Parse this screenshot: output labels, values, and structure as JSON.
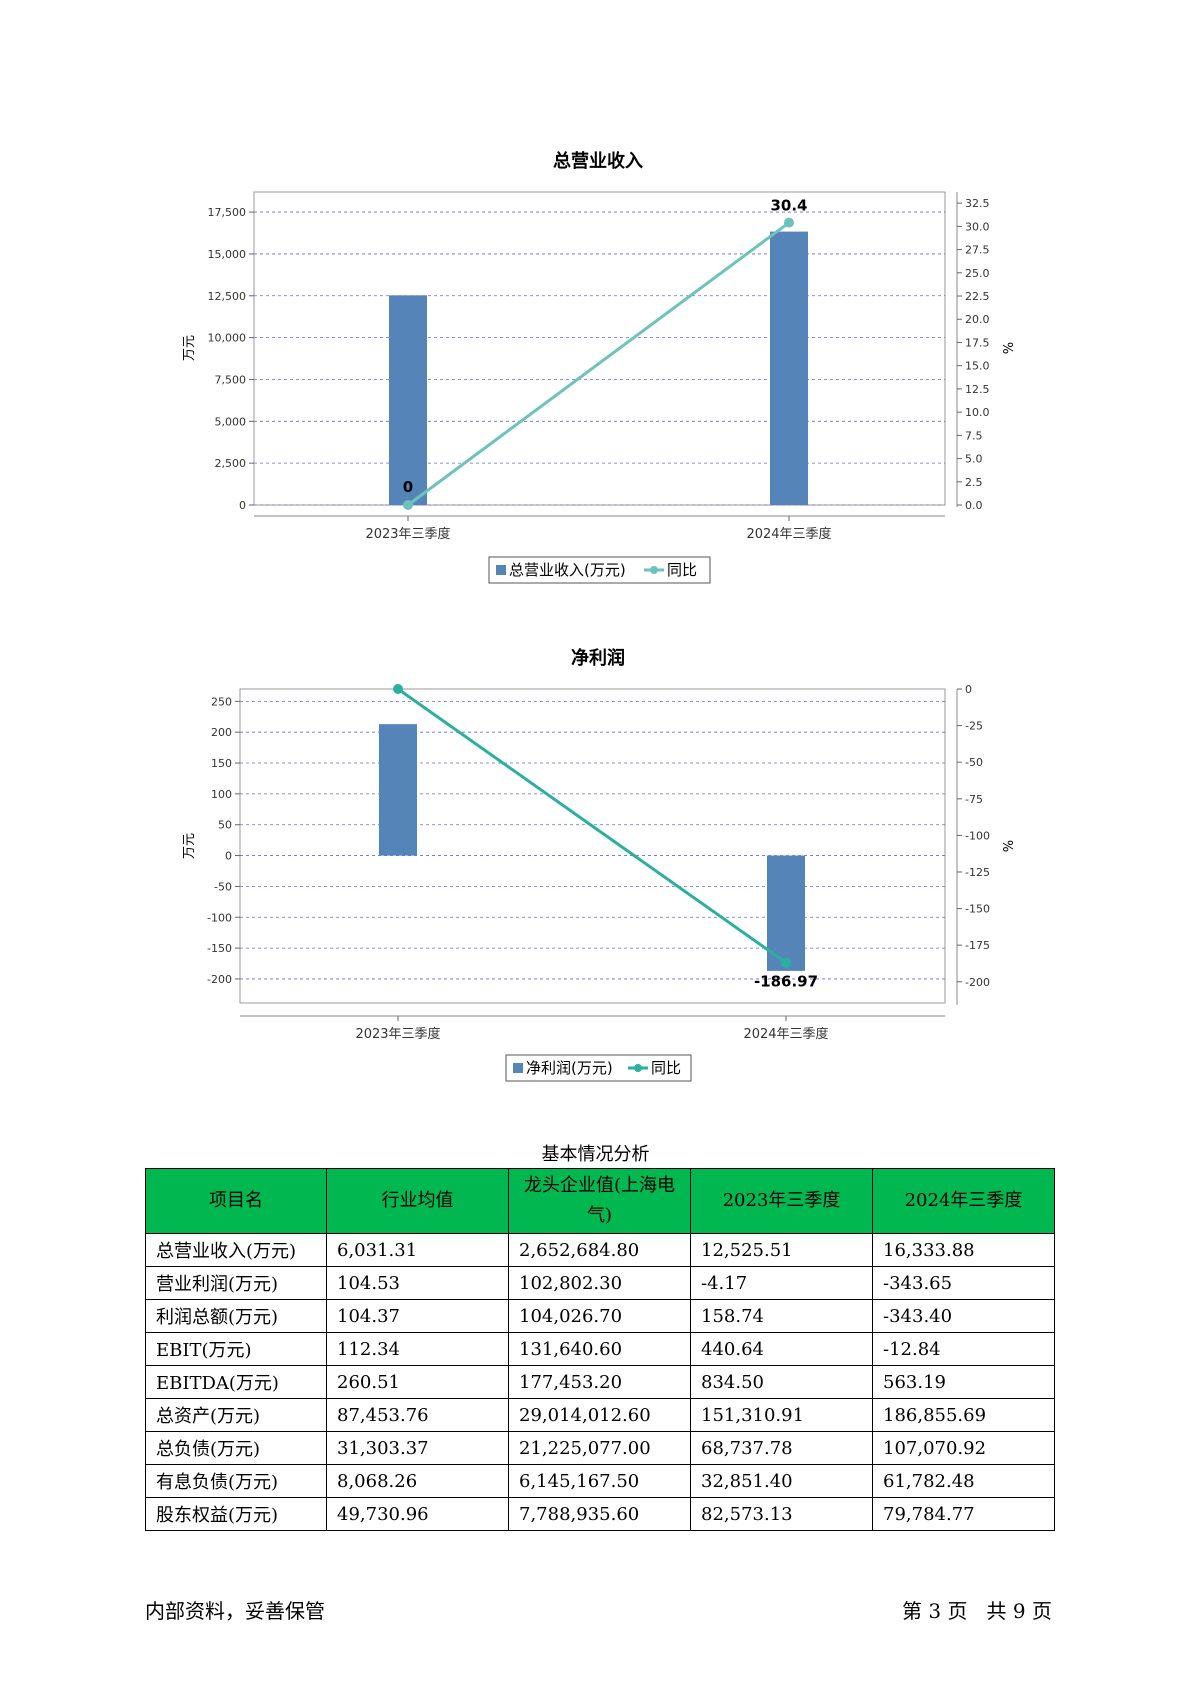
{
  "chart_data": [
    {
      "type": "bar",
      "title": "总营业收入",
      "categories": [
        "2023年三季度",
        "2024年三季度"
      ],
      "series": [
        {
          "name": "总营业收入(万元)",
          "axis": "left",
          "type": "bar",
          "values": [
            12525.51,
            16333.88
          ]
        },
        {
          "name": "同比",
          "axis": "right",
          "type": "line",
          "values": [
            0,
            30.4
          ],
          "labels": [
            "0",
            "30.4"
          ]
        }
      ],
      "ylabel": "万元",
      "ylim": [
        0,
        18700
      ],
      "yticks": [
        0,
        2500,
        5000,
        7500,
        10000,
        12500,
        15000,
        17500
      ],
      "ytick_labels": [
        "0",
        "2,500",
        "5,000",
        "7,500",
        "10,000",
        "12,500",
        "15,000",
        "17,500"
      ],
      "y2label": "%",
      "y2lim": [
        0,
        33.7
      ],
      "y2ticks": [
        0,
        2.5,
        5,
        7.5,
        10,
        12.5,
        15,
        17.5,
        20,
        22.5,
        25,
        27.5,
        30,
        32.5
      ],
      "y2tick_labels": [
        "0.0",
        "2.5",
        "5.0",
        "7.5",
        "10.0",
        "12.5",
        "15.0",
        "17.5",
        "20.0",
        "22.5",
        "25.0",
        "27.5",
        "30.0",
        "32.5"
      ],
      "legend": "bottom-center",
      "grid": true,
      "colors": {
        "bar": "#5585b8",
        "line": "#6ec2bc"
      }
    },
    {
      "type": "bar",
      "title": "净利润",
      "categories": [
        "2023年三季度",
        "2024年三季度"
      ],
      "series": [
        {
          "name": "净利润(万元)",
          "axis": "left",
          "type": "bar",
          "values": [
            213,
            -186.97
          ]
        },
        {
          "name": "同比",
          "axis": "right",
          "type": "line",
          "values": [
            0,
            -186.97
          ],
          "labels": [
            "",
            "-186.97"
          ]
        }
      ],
      "ylabel": "万元",
      "ylim": [
        -239,
        270
      ],
      "yticks": [
        -200,
        -150,
        -100,
        -50,
        0,
        50,
        100,
        150,
        200,
        250
      ],
      "ytick_labels": [
        "-200",
        "-150",
        "-100",
        "-50",
        "0",
        "50",
        "100",
        "150",
        "200",
        "250"
      ],
      "y2label": "%",
      "y2lim": [
        -214.5,
        0
      ],
      "y2ticks": [
        0,
        -25,
        -50,
        -75,
        -100,
        -125,
        -150,
        -175,
        -200
      ],
      "y2tick_labels": [
        "0",
        "-25",
        "-50",
        "-75",
        "-100",
        "-125",
        "-150",
        "-175",
        "-200"
      ],
      "legend": "bottom-center",
      "grid": true,
      "colors": {
        "bar": "#5585b8",
        "line": "#2bb0a0"
      }
    }
  ],
  "table": {
    "title": "基本情况分析",
    "header_color": "#00b84f",
    "headers": [
      "项目名",
      "行业均值",
      "龙头企业值(上海电气)",
      "2023年三季度",
      "2024年三季度"
    ],
    "rows": [
      [
        "总营业收入(万元)",
        "6,031.31",
        "2,652,684.80",
        "12,525.51",
        "16,333.88"
      ],
      [
        "营业利润(万元)",
        "104.53",
        "102,802.30",
        "-4.17",
        "-343.65"
      ],
      [
        "利润总额(万元)",
        "104.37",
        "104,026.70",
        "158.74",
        "-343.40"
      ],
      [
        "EBIT(万元)",
        "112.34",
        "131,640.60",
        "440.64",
        "-12.84"
      ],
      [
        "EBITDA(万元)",
        "260.51",
        "177,453.20",
        "834.50",
        "563.19"
      ],
      [
        "总资产(万元)",
        "87,453.76",
        "29,014,012.60",
        "151,310.91",
        "186,855.69"
      ],
      [
        "总负债(万元)",
        "31,303.37",
        "21,225,077.00",
        "68,737.78",
        "107,070.92"
      ],
      [
        "有息负债(万元)",
        "8,068.26",
        "6,145,167.50",
        "32,851.40",
        "61,782.48"
      ],
      [
        "股东权益(万元)",
        "49,730.96",
        "7,788,935.60",
        "82,573.13",
        "79,784.77"
      ]
    ]
  },
  "footer": {
    "left": "内部资料，妥善保管",
    "right": "第 3 页   共 9 页"
  }
}
